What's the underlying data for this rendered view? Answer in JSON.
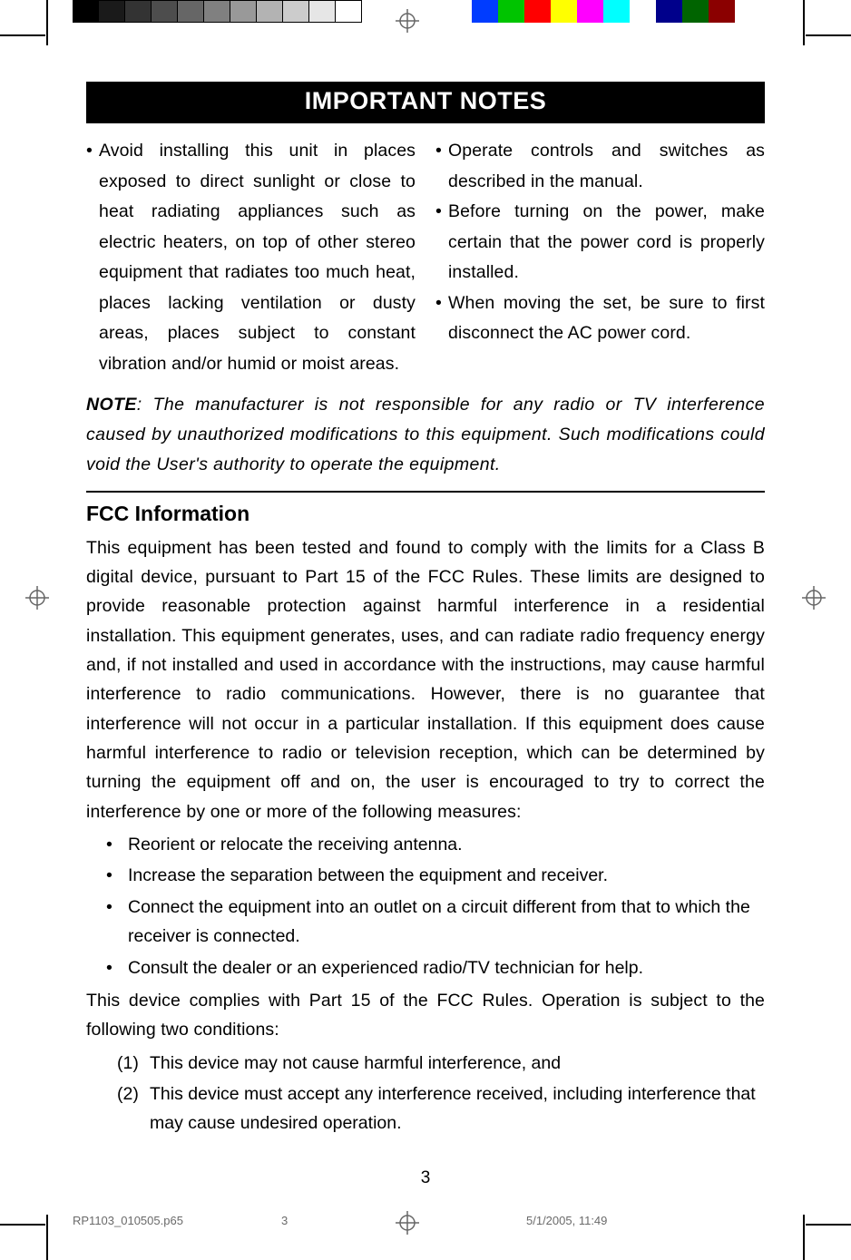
{
  "colorbars": {
    "grayscale": [
      "#000000",
      "#1a1a1a",
      "#333333",
      "#4d4d4d",
      "#666666",
      "#808080",
      "#999999",
      "#b3b3b3",
      "#cccccc",
      "#e6e6e6",
      "#ffffff"
    ],
    "grayscale_border": "#000000",
    "chroma": [
      "#003cff",
      "#00c400",
      "#ff0000",
      "#ffff00",
      "#ff00ff",
      "#00ffff",
      "#ffffff",
      "#00008b",
      "#006400",
      "#8b0000"
    ]
  },
  "title": "IMPORTANT NOTES",
  "notes_left": [
    "Avoid installing this unit in places exposed to direct sunlight or close to heat radiating appliances such as electric heaters, on top of other stereo equipment that radiates too much heat, places lacking ventilation or dusty areas, places subject to constant vibration and/or humid or moist areas."
  ],
  "notes_right": [
    "Operate controls and switches as described in the manual.",
    "Before turning on the power, make certain that the power cord is properly installed.",
    "When moving the set, be sure to first disconnect the AC power cord."
  ],
  "note_label": "NOTE",
  "note_text": ": The manufacturer is not responsible for any radio or TV interference caused by unauthorized modifications to this equipment. Such modifications could void the User's authority to operate the equipment.",
  "fcc_heading": "FCC Information",
  "fcc_para1": "This equipment has been tested and found to comply with the limits for a Class B digital device, pursuant to Part 15 of the FCC Rules. These limits are designed to provide reasonable protection against harmful interference in a residential installation. This equipment generates, uses, and can radiate radio frequency energy and, if not installed and used in accordance with the instructions, may cause harmful interference to radio communications. However, there is no guarantee that interference will not occur in a particular installation. If this equipment does cause harmful interference to radio or television reception, which can be determined by turning the equipment off and on, the user is encouraged to try to correct the interference by one or more of the following measures:",
  "fcc_list": [
    "Reorient or relocate the receiving antenna.",
    "Increase the separation between the equipment and receiver.",
    "Connect the equipment into an outlet on a circuit different from that to which the receiver is connected.",
    "Consult the dealer or an experienced radio/TV technician for help."
  ],
  "fcc_para2": "This device complies with Part 15 of the FCC Rules. Operation is subject to the following two conditions:",
  "fcc_numbered": [
    "This device may not cause harmful interference, and",
    "This device must accept any interference received, including interference that may cause undesired operation."
  ],
  "page_number": "3",
  "footer": {
    "filename": "RP1103_010505.p65",
    "page": "3",
    "datetime": "5/1/2005, 11:49"
  }
}
